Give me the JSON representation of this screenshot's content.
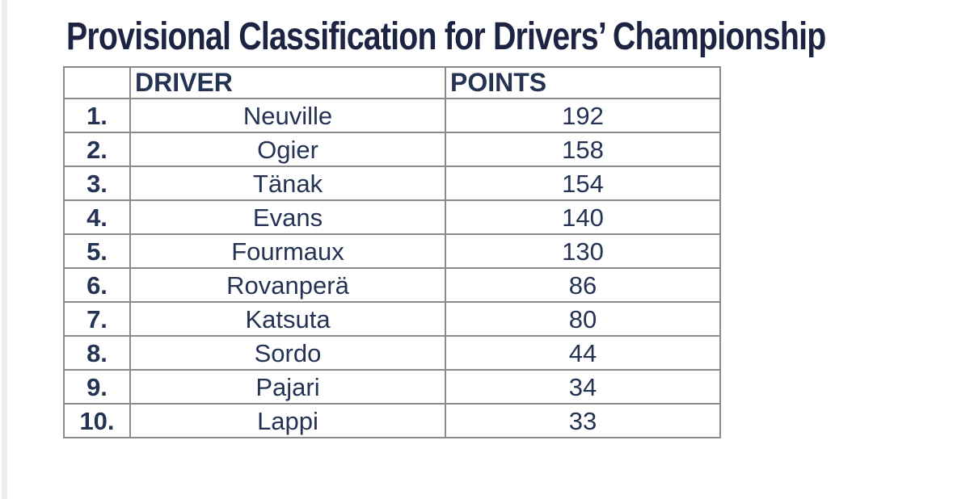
{
  "title": "Provisional Classification for Drivers’ Championship",
  "table": {
    "headers": {
      "rank": "",
      "driver": "DRIVER",
      "points": "POINTS"
    },
    "rows": [
      {
        "rank": "1.",
        "driver": "Neuville",
        "points": "192"
      },
      {
        "rank": "2.",
        "driver": "Ogier",
        "points": "158"
      },
      {
        "rank": "3.",
        "driver": "Tänak",
        "points": "154"
      },
      {
        "rank": "4.",
        "driver": "Evans",
        "points": "140"
      },
      {
        "rank": "5.",
        "driver": "Fourmaux",
        "points": "130"
      },
      {
        "rank": "6.",
        "driver": "Rovanperä",
        "points": "86"
      },
      {
        "rank": "7.",
        "driver": "Katsuta",
        "points": "80"
      },
      {
        "rank": "8.",
        "driver": "Sordo",
        "points": "44"
      },
      {
        "rank": "9.",
        "driver": "Pajari",
        "points": "34"
      },
      {
        "rank": "10.",
        "driver": "Lappi",
        "points": "33"
      }
    ]
  },
  "colors": {
    "title_text": "#1d2342",
    "table_text": "#243353",
    "table_border": "#8a8a8a",
    "page_edge_strip": "#ededed",
    "background": "#ffffff"
  },
  "chart_data": {
    "type": "table",
    "title": "Provisional Classification for Drivers’ Championship",
    "columns": [
      "",
      "DRIVER",
      "POINTS"
    ],
    "rows": [
      [
        "1.",
        "Neuville",
        192
      ],
      [
        "2.",
        "Ogier",
        158
      ],
      [
        "3.",
        "Tänak",
        154
      ],
      [
        "4.",
        "Evans",
        140
      ],
      [
        "5.",
        "Fourmaux",
        130
      ],
      [
        "6.",
        "Rovanperä",
        86
      ],
      [
        "7.",
        "Katsuta",
        80
      ],
      [
        "8.",
        "Sordo",
        44
      ],
      [
        "9.",
        "Pajari",
        34
      ],
      [
        "10.",
        "Lappi",
        33
      ]
    ]
  }
}
